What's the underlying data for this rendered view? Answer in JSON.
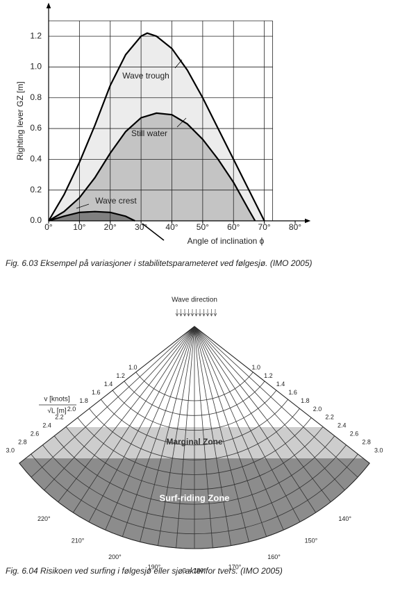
{
  "chart_data": {
    "type": "area",
    "xlabel": "Angle of inclination ϕ",
    "ylabel": "Righting lever GZ  [m]",
    "xlim": [
      0,
      80
    ],
    "ylim": [
      0,
      1.3
    ],
    "xticks": [
      {
        "value": 0,
        "label": "0°"
      },
      {
        "value": 10,
        "label": "10°"
      },
      {
        "value": 20,
        "label": "20°"
      },
      {
        "value": 30,
        "label": "30°"
      },
      {
        "value": 40,
        "label": "40°"
      },
      {
        "value": 50,
        "label": "50°"
      },
      {
        "value": 60,
        "label": "60°"
      },
      {
        "value": 70,
        "label": "70°"
      },
      {
        "value": 80,
        "label": "80°"
      }
    ],
    "yticks": [
      {
        "value": 0,
        "label": "0.0"
      },
      0.2,
      0.4,
      0.6,
      0.8,
      {
        "value": 1,
        "label": "1.0"
      },
      1.2
    ],
    "grid": true,
    "series": [
      {
        "name": "Wave trough",
        "color": "#ececec",
        "x": [
          0,
          5,
          10,
          15,
          20,
          25,
          30,
          32,
          35,
          40,
          45,
          50,
          55,
          60,
          65,
          70
        ],
        "values": [
          0,
          0.17,
          0.38,
          0.62,
          0.88,
          1.08,
          1.2,
          1.22,
          1.2,
          1.12,
          0.98,
          0.8,
          0.6,
          0.4,
          0.2,
          0
        ]
      },
      {
        "name": "Still water",
        "color": "#c4c4c4",
        "x": [
          0,
          5,
          10,
          15,
          20,
          25,
          30,
          35,
          40,
          45,
          50,
          55,
          60,
          65,
          67
        ],
        "values": [
          0,
          0.06,
          0.15,
          0.28,
          0.44,
          0.58,
          0.67,
          0.7,
          0.69,
          0.63,
          0.53,
          0.4,
          0.25,
          0.07,
          0
        ]
      },
      {
        "name": "Wave crest",
        "color": "#808080",
        "x": [
          0,
          5,
          10,
          15,
          20,
          25,
          28
        ],
        "values": [
          0,
          0.03,
          0.055,
          0.06,
          0.055,
          0.03,
          0
        ]
      }
    ]
  },
  "captions": [
    "Fig. 6.03 Eksempel på variasjoner i stabilitetsparameteret ved følgesjø. (IMO 2005)",
    "Fig. 6.04 Risikoen ved surfing i følgesjø eller sjø aktenfor tvers. (IMO 2005)"
  ],
  "diagram": {
    "wave_direction": "Wave direction",
    "ratio_numerator": "v [knots]",
    "ratio_denominator": "√L [m]",
    "speed_labels": [
      "1.0",
      "1.2",
      "1.4",
      "1.6",
      "1.8",
      "2.0",
      "2.2",
      "2.4",
      "2.6",
      "2.8",
      "3.0"
    ],
    "zones": [
      "Marginal Zone",
      "Surf-riding Zone"
    ],
    "heading_labels": [
      "220°",
      "210°",
      "200°",
      "190°",
      "β = 180°",
      "170°",
      "160°",
      "150°",
      "140°"
    ]
  }
}
